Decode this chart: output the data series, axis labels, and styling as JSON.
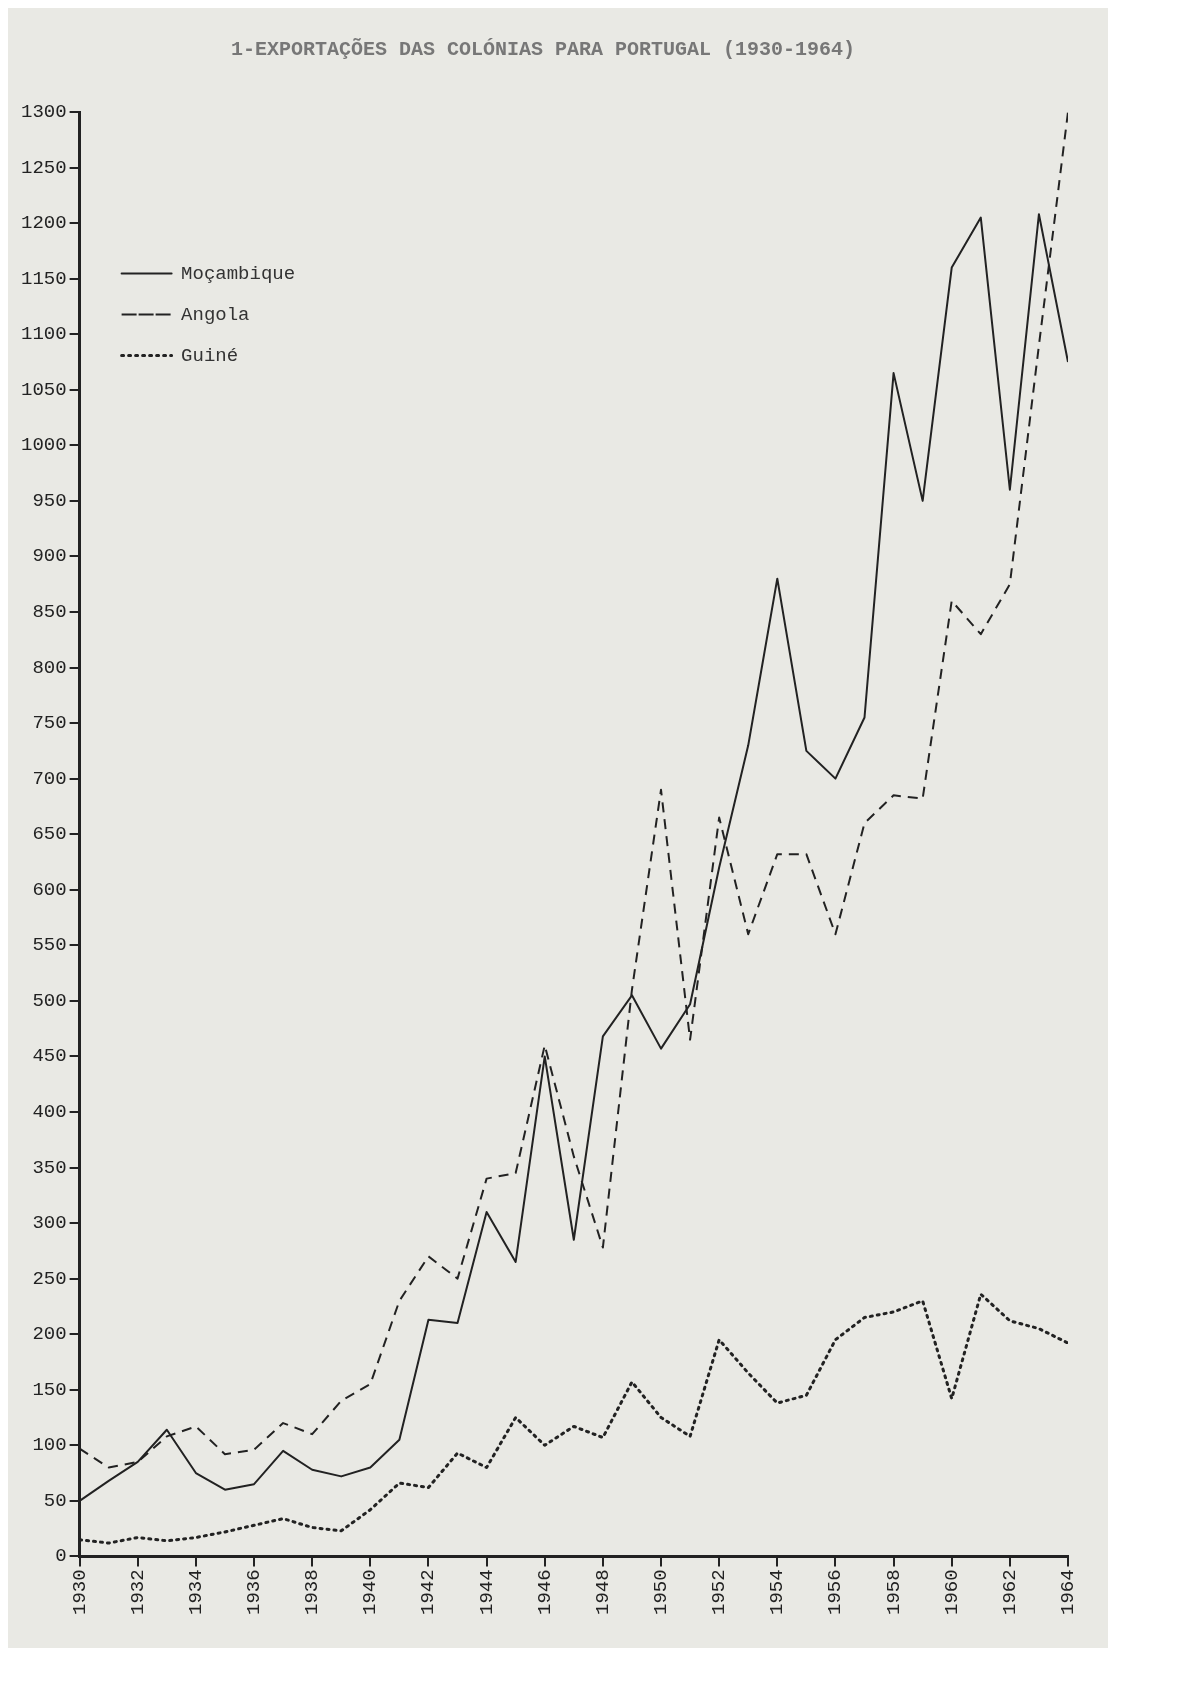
{
  "chart_data": {
    "type": "line",
    "title": "1-EXPORTAÇÕES DAS COLÓNIAS PARA PORTUGAL (1930-1964)",
    "x": [
      1930,
      1931,
      1932,
      1933,
      1934,
      1935,
      1936,
      1937,
      1938,
      1939,
      1940,
      1941,
      1942,
      1943,
      1944,
      1945,
      1946,
      1947,
      1948,
      1949,
      1950,
      1951,
      1952,
      1953,
      1954,
      1955,
      1956,
      1957,
      1958,
      1959,
      1960,
      1961,
      1962,
      1963,
      1964
    ],
    "series": [
      {
        "name": "Moçambique",
        "color": "#222222",
        "line_style": "solid",
        "values": [
          50,
          68,
          85,
          114,
          75,
          60,
          65,
          95,
          78,
          72,
          80,
          105,
          213,
          210,
          310,
          265,
          450,
          285,
          468,
          505,
          457,
          497,
          620,
          730,
          880,
          725,
          700,
          755,
          1065,
          950,
          1160,
          1205,
          960,
          1208,
          1075
        ]
      },
      {
        "name": "Angola",
        "color": "#222222",
        "line_style": "dashed",
        "values": [
          97,
          80,
          85,
          108,
          117,
          92,
          96,
          120,
          110,
          140,
          155,
          230,
          270,
          250,
          340,
          345,
          460,
          360,
          278,
          510,
          690,
          465,
          665,
          560,
          632,
          632,
          560,
          660,
          685,
          682,
          860,
          830,
          875,
          1090,
          1300
        ]
      },
      {
        "name": "Guiné",
        "color": "#222222",
        "line_style": "dotted",
        "values": [
          15,
          12,
          17,
          14,
          17,
          22,
          28,
          34,
          26,
          23,
          42,
          66,
          62,
          93,
          80,
          125,
          100,
          117,
          107,
          157,
          125,
          108,
          195,
          165,
          138,
          145,
          195,
          215,
          220,
          230,
          142,
          236,
          212,
          205,
          192
        ]
      }
    ],
    "xlim": [
      1930,
      1964
    ],
    "xticks": [
      1930,
      1932,
      1934,
      1936,
      1938,
      1940,
      1942,
      1944,
      1946,
      1948,
      1950,
      1952,
      1954,
      1956,
      1958,
      1960,
      1962,
      1964
    ],
    "ylim": [
      0,
      1300
    ],
    "yticks": [
      0,
      50,
      100,
      150,
      200,
      250,
      300,
      350,
      400,
      450,
      500,
      550,
      600,
      650,
      700,
      750,
      800,
      850,
      900,
      950,
      1000,
      1050,
      1100,
      1150,
      1200,
      1250,
      1300
    ],
    "grid": false,
    "legend": "top left",
    "marker": "none"
  }
}
